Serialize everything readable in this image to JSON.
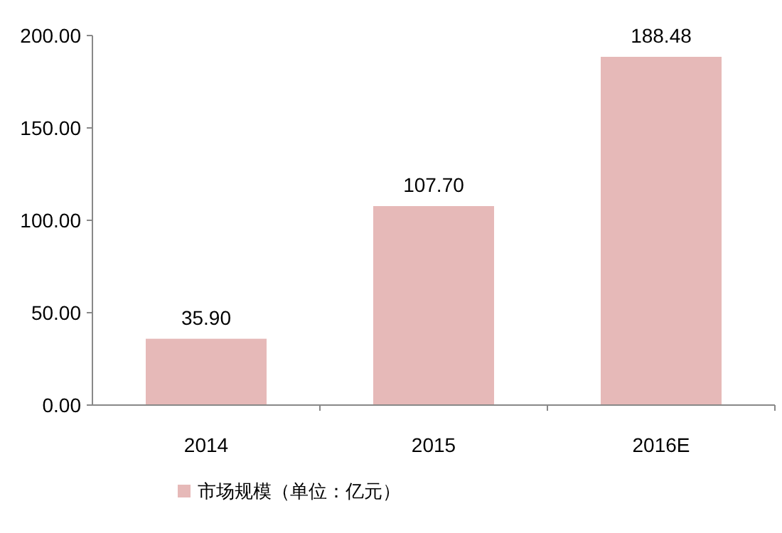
{
  "chart_data": {
    "type": "bar",
    "categories": [
      "2014",
      "2015",
      "2016E"
    ],
    "series": [
      {
        "name": "市场规模（单位：亿元）",
        "color": "#e6b9b8",
        "values": [
          35.9,
          107.7,
          188.48
        ],
        "value_labels": [
          "35.90",
          "107.70",
          "188.48"
        ]
      }
    ],
    "ylim": [
      0,
      200
    ],
    "yticks": [
      {
        "value": 0,
        "label": "0.00"
      },
      {
        "value": 50,
        "label": "50.00"
      },
      {
        "value": 100,
        "label": "100.00"
      },
      {
        "value": 150,
        "label": "150.00"
      },
      {
        "value": 200,
        "label": "200.00"
      }
    ],
    "legend": "bottom"
  }
}
